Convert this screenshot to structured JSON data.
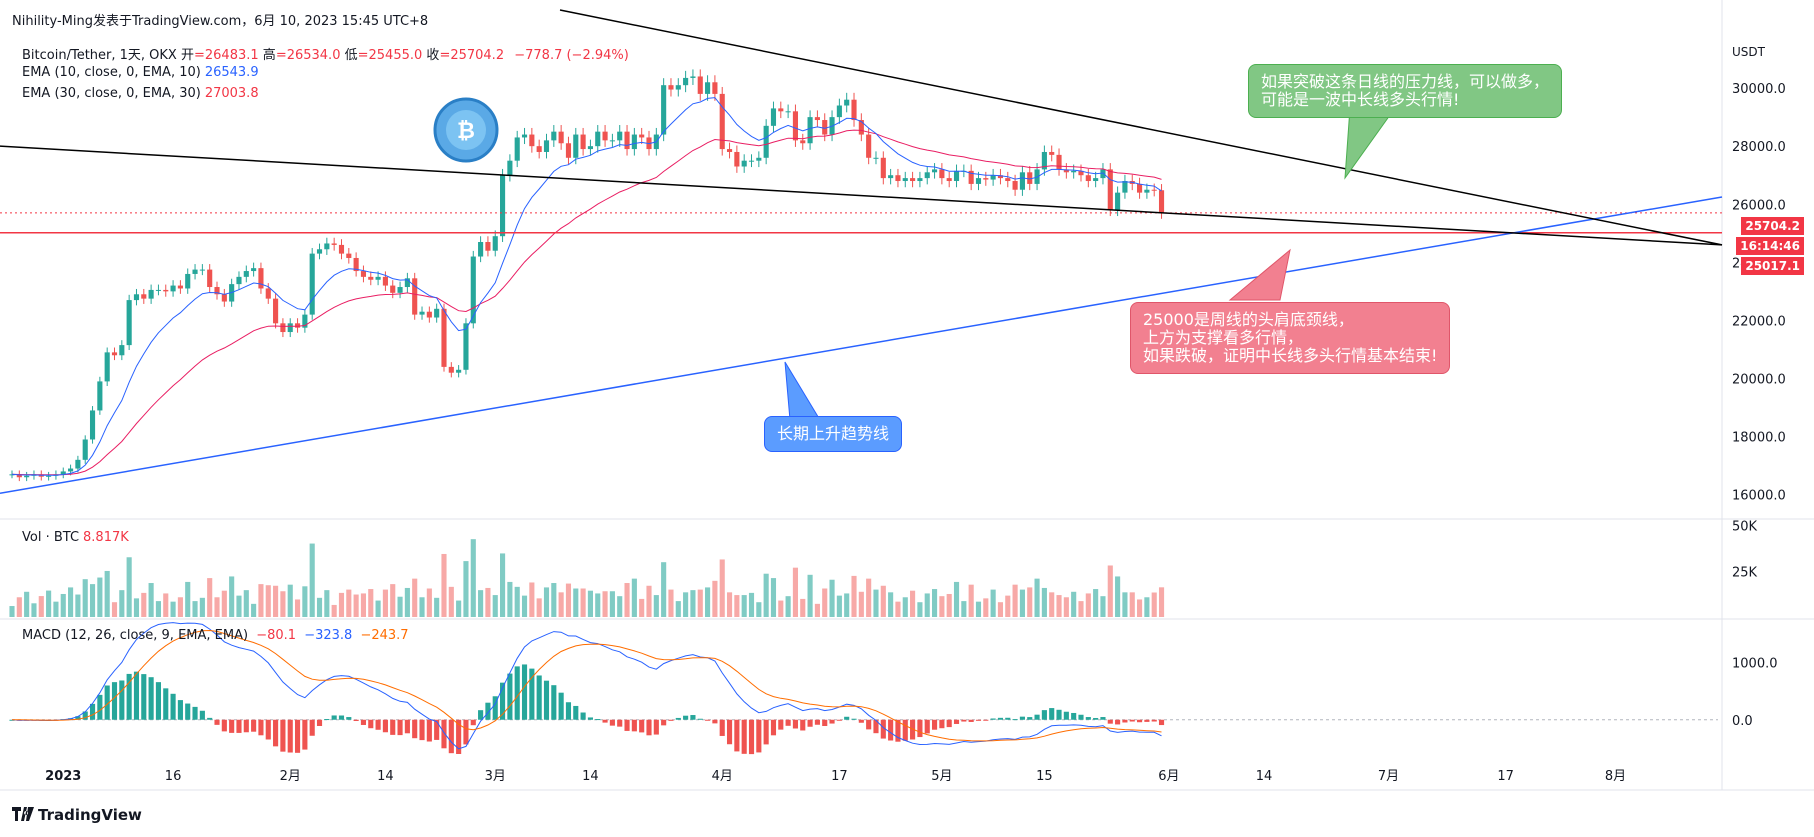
{
  "header": {
    "author": "Nihility-Ming发表于TradingView.com，6月 10, 2023 15:45 UTC+8"
  },
  "legend": {
    "symbol": "Bitcoin/Tether, 1天, OKX",
    "open_label": "开",
    "open": "=26483.1",
    "high_label": "高",
    "high": "=26534.0",
    "low_label": "低",
    "low": "=25455.0",
    "close_label": "收",
    "close": "=25704.2",
    "change": "−778.7 (−2.94%)",
    "ema10_label": "EMA (10, close, 0, EMA, 10)",
    "ema10_value": "26543.9",
    "ema30_label": "EMA (30, close, 0, EMA, 30)",
    "ema30_value": "27003.8",
    "vol_label": "Vol · BTC",
    "vol_value": "8.817K",
    "macd_label": "MACD (12, 26, close, 9, EMA, EMA)",
    "macd_hist": "−80.1",
    "macd_line": "−323.8",
    "macd_signal": "−243.7"
  },
  "axis": {
    "currency": "USDT",
    "price_ticks": [
      "30000.0",
      "28000.0",
      "26000.0",
      "24000.0",
      "22000.0",
      "20000.0",
      "18000.0",
      "16000.0"
    ],
    "volume_ticks": [
      "50K",
      "25K"
    ],
    "macd_ticks": [
      "1000.0",
      "0.0"
    ],
    "time_ticks": [
      "2023",
      "16",
      "2月",
      "14",
      "3月",
      "14",
      "4月",
      "17",
      "5月",
      "15",
      "6月",
      "14",
      "7月",
      "17",
      "8月"
    ]
  },
  "price_tags": {
    "last": "25704.2",
    "countdown": "16:14:46",
    "level": "25017.1"
  },
  "annotations": {
    "top": [
      "如果突破这条日线的压力线，可以做多，",
      "可能是一波中长线多头行情!"
    ],
    "middle": [
      "25000是周线的头肩底颈线，",
      "上方为支撑看多行情，",
      "如果跌破，证明中长线多头行情基本结束!"
    ],
    "bottom": "长期上升趋势线"
  },
  "footer": {
    "brand": "TradingView"
  },
  "colors": {
    "up": "#26a69a",
    "down": "#ef5350",
    "ema10": "#2962ff",
    "ema30": "#e91e63",
    "macd": "#2962ff",
    "signal": "#ff6d00",
    "level": "#f23645",
    "trend": "#2962ff"
  },
  "chart_data": {
    "type": "candlestick",
    "title": "Bitcoin/Tether, 1天, OKX",
    "ylabel": "USDT",
    "ylim": [
      15300,
      32000
    ],
    "x_ticks": [
      "2023",
      "16",
      "2月",
      "14",
      "3月",
      "14",
      "4月",
      "17",
      "5月",
      "15",
      "6月",
      "14",
      "7月",
      "17",
      "8月"
    ],
    "x_range": [
      "2022-12-25",
      "2023-08-15"
    ],
    "horizontal_level": 25017.1,
    "last_price": 25704.2,
    "closes_approx": [
      16700,
      16600,
      16650,
      16700,
      16620,
      16650,
      16700,
      16800,
      16900,
      17200,
      17900,
      18900,
      19900,
      20900,
      20800,
      21150,
      22700,
      22900,
      22750,
      23050,
      23050,
      23000,
      23200,
      23100,
      23600,
      23750,
      23750,
      23150,
      22900,
      22650,
      23250,
      23500,
      23700,
      23800,
      23100,
      22750,
      21900,
      21600,
      21900,
      21750,
      22200,
      24300,
      24450,
      24650,
      24600,
      24300,
      24150,
      23700,
      23500,
      23400,
      23500,
      23200,
      22950,
      23150,
      23450,
      22200,
      22300,
      22100,
      22400,
      20400,
      20200,
      20300,
      21900,
      24200,
      24700,
      24400,
      24900,
      27000,
      27500,
      28300,
      28400,
      28000,
      27800,
      28200,
      28500,
      28100,
      27600,
      28400,
      27900,
      28000,
      28500,
      28200,
      28200,
      28500,
      27900,
      28400,
      28300,
      27900,
      28400,
      30100,
      29950,
      30100,
      30350,
      30400,
      29800,
      30200,
      29800,
      27900,
      27800,
      27300,
      27500,
      27500,
      27600,
      28700,
      29300,
      29200,
      29200,
      28200,
      28100,
      29000,
      28900,
      28400,
      29000,
      29400,
      29600,
      28900,
      28400,
      27600,
      27600,
      26900,
      27000,
      26800,
      26900,
      26800,
      26900,
      27100,
      27200,
      26900,
      26800,
      27150,
      27150,
      26700,
      26900,
      26850,
      27000,
      26900,
      26800,
      26500,
      27100,
      26700,
      27200,
      27800,
      27700,
      27200,
      27100,
      27150,
      27000,
      26800,
      26900,
      27200,
      25800,
      26400,
      26800,
      26700,
      26400,
      26500,
      26483,
      25704
    ],
    "ema10_end": 26543.9,
    "ema30_end": 27003.8,
    "volume_ylim": [
      0,
      52000
    ],
    "macd_ylim": [
      -700,
      1700
    ],
    "macd_end": {
      "hist": -80.1,
      "macd": -323.8,
      "signal": -243.7
    }
  }
}
